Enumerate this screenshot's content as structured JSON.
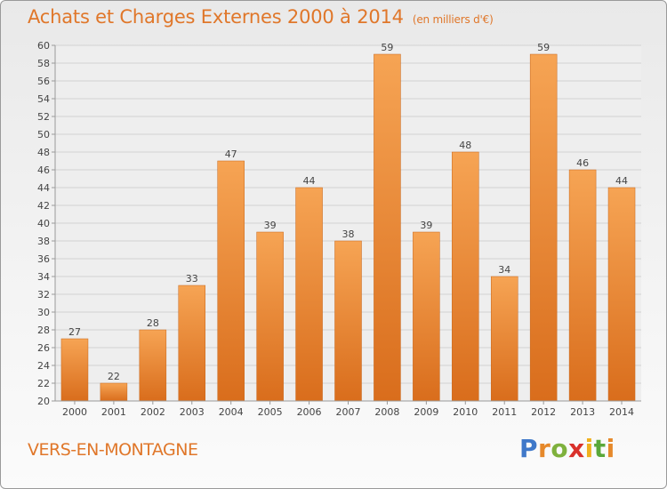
{
  "title": "Achats et Charges Externes 2000 à 2014",
  "subtitle": "(en milliers d'€)",
  "commune": "VERS-EN-MONTAGNE",
  "logo": {
    "text": "Proxiti",
    "letters": [
      "P",
      "r",
      "o",
      "x",
      "i",
      "t",
      "i"
    ]
  },
  "colors": {
    "accent": "#e0772a",
    "bar_top": "#f6a454",
    "bar_bottom": "#d96d1c"
  },
  "chart_data": {
    "type": "bar",
    "categories": [
      "2000",
      "2001",
      "2002",
      "2003",
      "2004",
      "2005",
      "2006",
      "2007",
      "2008",
      "2009",
      "2010",
      "2011",
      "2012",
      "2013",
      "2014"
    ],
    "values": [
      27,
      22,
      28,
      33,
      47,
      39,
      44,
      38,
      59,
      39,
      48,
      34,
      59,
      46,
      44
    ],
    "data_labels": [
      "27",
      "22",
      "28",
      "33",
      "47",
      "39",
      "44",
      "38",
      "59",
      "39",
      "48",
      "34",
      "59",
      "46",
      "44"
    ],
    "ylim": [
      20,
      60
    ],
    "yticks": [
      "20",
      "22",
      "24",
      "26",
      "28",
      "30",
      "32",
      "34",
      "36",
      "38",
      "40",
      "42",
      "44",
      "46",
      "48",
      "50",
      "52",
      "54",
      "56",
      "58",
      "60"
    ],
    "grid": true,
    "legend": "none",
    "xlabel": "",
    "ylabel": ""
  }
}
